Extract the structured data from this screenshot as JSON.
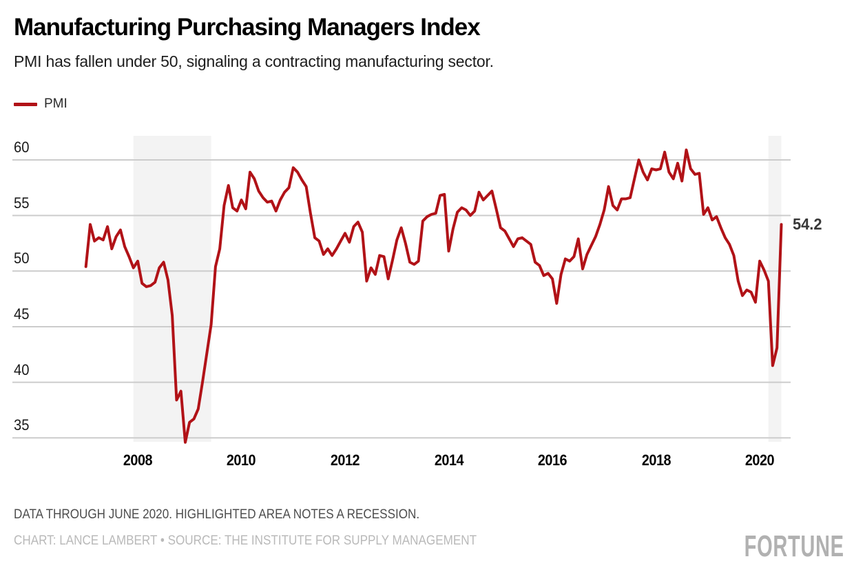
{
  "header": {
    "title": "Manufacturing Purchasing Managers Index",
    "subtitle": "PMI has fallen under 50, signaling a contracting manufacturing sector."
  },
  "legend": {
    "label": "PMI",
    "color": "#b11217"
  },
  "footer": {
    "note": "DATA THROUGH JUNE 2020. HIGHLIGHTED AREA NOTES A RECESSION.",
    "credit": "CHART: LANCE LAMBERT • SOURCE: THE INSTITUTE FOR SUPPLY MANAGEMENT"
  },
  "brand": {
    "logo_text": "FORTUNE"
  },
  "chart_data": {
    "type": "line",
    "title": "Manufacturing Purchasing Managers Index",
    "frequency": "monthly",
    "x_start": "2007-01",
    "x_end": "2020-06",
    "x_tick_labels": [
      "2008",
      "2010",
      "2012",
      "2014",
      "2016",
      "2018",
      "2020"
    ],
    "y_ticks": [
      60,
      55,
      50,
      45,
      40,
      35
    ],
    "ylim": [
      33.5,
      61.5
    ],
    "grid": true,
    "legend_position": "top-left",
    "gridline_color": "#cccccc",
    "band_color": "#f3f3f3",
    "end_label": "54.2",
    "recessions": [
      {
        "from": "2007-12",
        "to": "2009-06"
      },
      {
        "from": "2020-03",
        "to": "2020-06"
      }
    ],
    "series": [
      {
        "name": "PMI",
        "color": "#b11217",
        "values": [
          50.4,
          54.2,
          52.7,
          53.0,
          52.8,
          54.0,
          52.0,
          53.1,
          53.7,
          52.2,
          51.3,
          50.3,
          50.9,
          48.9,
          48.6,
          48.7,
          49.0,
          50.3,
          50.8,
          49.2,
          46.0,
          38.4,
          39.2,
          34.6,
          36.4,
          36.7,
          37.6,
          40.0,
          42.6,
          45.2,
          50.4,
          52.0,
          55.9,
          57.7,
          55.7,
          55.4,
          56.4,
          55.6,
          58.9,
          58.3,
          57.2,
          56.6,
          56.2,
          56.3,
          55.4,
          56.4,
          57.1,
          57.5,
          59.3,
          58.9,
          58.2,
          57.6,
          55.2,
          53.0,
          52.7,
          51.5,
          52.0,
          51.4,
          52.0,
          52.7,
          53.4,
          52.6,
          54.0,
          54.4,
          53.5,
          49.1,
          50.3,
          49.7,
          51.4,
          51.3,
          49.3,
          51.0,
          52.8,
          53.9,
          52.5,
          50.8,
          50.6,
          50.9,
          54.5,
          54.9,
          55.1,
          55.2,
          56.8,
          56.9,
          51.8,
          53.8,
          55.3,
          55.7,
          55.5,
          55.0,
          55.4,
          57.1,
          56.4,
          56.8,
          57.2,
          55.6,
          53.9,
          53.6,
          52.9,
          52.2,
          52.9,
          53.0,
          52.7,
          52.4,
          50.8,
          50.5,
          49.6,
          49.8,
          49.3,
          47.1,
          49.7,
          51.1,
          50.9,
          51.3,
          52.9,
          50.2,
          51.5,
          52.3,
          53.1,
          54.2,
          55.5,
          57.6,
          55.9,
          55.5,
          56.5,
          56.5,
          56.6,
          58.3,
          60.0,
          58.9,
          58.2,
          59.2,
          59.1,
          59.2,
          60.7,
          58.9,
          58.3,
          59.7,
          58.1,
          60.9,
          59.2,
          58.7,
          58.8,
          55.1,
          55.7,
          54.6,
          54.9,
          53.9,
          53.0,
          52.4,
          51.4,
          49.1,
          47.8,
          48.3,
          48.1,
          47.2,
          50.9,
          50.1,
          49.1,
          41.5,
          43.1,
          54.2
        ]
      }
    ]
  }
}
